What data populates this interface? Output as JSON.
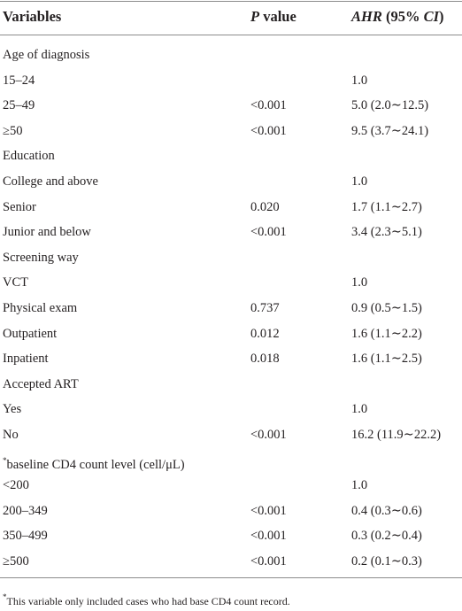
{
  "table": {
    "header": [
      [
        {
          "text": "Variables",
          "italic": false
        }
      ],
      [
        {
          "text": "P",
          "italic": true
        },
        {
          "text": " value",
          "italic": false
        }
      ],
      [
        {
          "text": "AHR",
          "italic": true
        },
        {
          "text": " (95% ",
          "italic": false
        },
        {
          "text": "CI",
          "italic": true
        },
        {
          "text": ")",
          "italic": false
        }
      ]
    ],
    "rows": [
      {
        "variable": "Age of diagnosis"
      },
      {
        "variable": "15–24",
        "ahr": "1.0"
      },
      {
        "variable": "25–49",
        "p": "<0.001",
        "ahr": "5.0 (2.0∼12.5)"
      },
      {
        "variable": "≥50",
        "p": "<0.001",
        "ahr": "9.5 (3.7∼24.1)"
      },
      {
        "variable": "Education"
      },
      {
        "variable": "College and above",
        "ahr": "1.0"
      },
      {
        "variable": "Senior",
        "p": "0.020",
        "ahr": "1.7 (1.1∼2.7)"
      },
      {
        "variable": "Junior and below",
        "p": "<0.001",
        "ahr": "3.4 (2.3∼5.1)"
      },
      {
        "variable": "Screening way"
      },
      {
        "variable": "VCT",
        "ahr": "1.0"
      },
      {
        "variable": "Physical exam",
        "p": "0.737",
        "ahr": "0.9 (0.5∼1.5)"
      },
      {
        "variable": "Outpatient",
        "p": "0.012",
        "ahr": "1.6 (1.1∼2.2)"
      },
      {
        "variable": "Inpatient",
        "p": "0.018",
        "ahr": "1.6 (1.1∼2.5)"
      },
      {
        "variable": "Accepted ART"
      },
      {
        "variable": "Yes",
        "ahr": "1.0"
      },
      {
        "variable": "No",
        "p": "<0.001",
        "ahr": "16.2 (11.9∼22.2)"
      },
      {
        "marker": "*",
        "variable": "baseline CD4 count level (cell/μL)"
      },
      {
        "variable": "<200",
        "ahr": "1.0"
      },
      {
        "variable": "200–349",
        "p": "<0.001",
        "ahr": "0.4 (0.3∼0.6)"
      },
      {
        "variable": "350–499",
        "p": "<0.001",
        "ahr": "0.3 (0.2∼0.4)"
      },
      {
        "variable": "≥500",
        "p": "<0.001",
        "ahr": "0.2 (0.1∼0.3)"
      }
    ],
    "footnote": {
      "marker": "*",
      "text": "This variable only included cases who had base CD4 count record."
    }
  }
}
